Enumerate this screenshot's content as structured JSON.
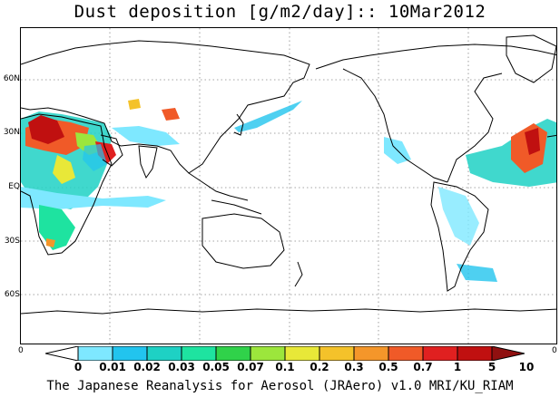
{
  "title": "Dust deposition [g/m2/day]:: 10Mar2012",
  "lat_labels": [
    "60N",
    "30N",
    "EQ",
    "30S",
    "60S"
  ],
  "corner_labels": {
    "left": "0",
    "right": "0"
  },
  "colorbar": {
    "ticks": [
      "0",
      "0.01",
      "0.02",
      "0.03",
      "0.05",
      "0.07",
      "0.1",
      "0.2",
      "0.3",
      "0.5",
      "0.7",
      "1",
      "5",
      "10"
    ],
    "colors": [
      "#ffffff",
      "#7ee8ff",
      "#22c4ee",
      "#1ed1c4",
      "#1ee3a0",
      "#30d24a",
      "#9ce63c",
      "#e8e838",
      "#f4c22a",
      "#f4962a",
      "#f05a28",
      "#e02020",
      "#c01010",
      "#901010"
    ]
  },
  "footer": "The Japanese Reanalysis for Aerosol (JRAero) v1.0 MRI/KU_RIAM"
}
